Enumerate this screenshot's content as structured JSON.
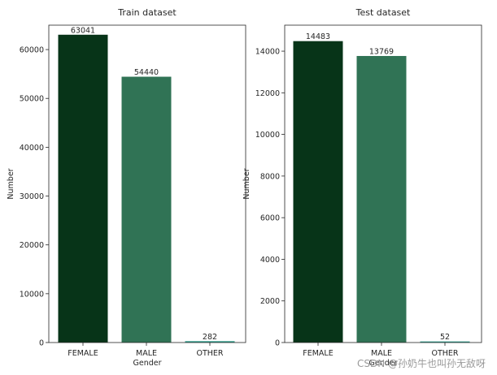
{
  "chart_data": [
    {
      "type": "bar",
      "title": "Train dataset",
      "xlabel": "Gender",
      "ylabel": "Number",
      "categories": [
        "FEMALE",
        "MALE",
        "OTHER"
      ],
      "values": [
        63041,
        54440,
        282
      ],
      "data_labels": [
        "63041",
        "54440",
        "282"
      ],
      "ylim": [
        0,
        65000
      ],
      "yticks": [
        0,
        10000,
        20000,
        30000,
        40000,
        50000,
        60000
      ],
      "ytick_labels": [
        "0",
        "10000",
        "20000",
        "30000",
        "40000",
        "50000",
        "60000"
      ],
      "colors": [
        "#073418",
        "#307355",
        "#2e9c8a"
      ],
      "grid": false
    },
    {
      "type": "bar",
      "title": "Test dataset",
      "xlabel": "Gender",
      "ylabel": "Number",
      "categories": [
        "FEMALE",
        "MALE",
        "OTHER"
      ],
      "values": [
        14483,
        13769,
        52
      ],
      "data_labels": [
        "14483",
        "13769",
        "52"
      ],
      "ylim": [
        0,
        15250
      ],
      "yticks": [
        0,
        2000,
        4000,
        6000,
        8000,
        10000,
        12000,
        14000
      ],
      "ytick_labels": [
        "0",
        "2000",
        "4000",
        "6000",
        "8000",
        "10000",
        "12000",
        "14000"
      ],
      "colors": [
        "#073418",
        "#307355",
        "#2e9c8a"
      ],
      "grid": false
    }
  ],
  "watermark": "CSDN @孙奶牛也叫孙无敌呀"
}
